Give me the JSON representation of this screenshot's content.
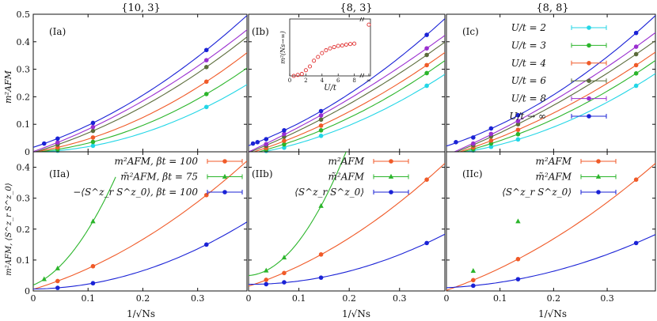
{
  "figure": {
    "column_titles": [
      "{10, 3}",
      "{8, 3}",
      "{8, 8}"
    ],
    "xlabel": "1/√Ns",
    "xticks": [
      "0",
      "0.1",
      "0.2",
      "0.3"
    ],
    "top_ylabel": "m²AFM",
    "top_yticks": [
      "0",
      "0.1",
      "0.2",
      "0.3",
      "0.4",
      "0.5"
    ],
    "bottom_ylabel": "m²AFM, ⟨S^z_r S^z_0⟩",
    "bottom_yticks": [
      "0",
      "0.1",
      "0.2",
      "0.3",
      "0.4"
    ]
  },
  "colors": {
    "U/t = 2": "#22d6e6",
    "U/t = 3": "#2bb52b",
    "U/t = 4": "#f05a28",
    "U/t = 6": "#5a6b3a",
    "U/t = 8": "#9a2fd0",
    "U/t → ∞": "#1a22d6",
    "m2": "#f05a28",
    "m2tilde": "#2bb52b",
    "corr": "#1a22d6",
    "inset": "#e03030"
  },
  "chart_data": [
    {
      "id": "Ia",
      "type": "scatter",
      "panel_label": "(Ia)",
      "xlim": [
        0,
        0.39
      ],
      "ylim": [
        0,
        0.5
      ],
      "series": [
        {
          "name": "U/t = 2",
          "x": [
            0.0445,
            0.109,
            0.316
          ],
          "y": [
            0.004,
            0.022,
            0.163
          ]
        },
        {
          "name": "U/t = 3",
          "x": [
            0.0445,
            0.109,
            0.316
          ],
          "y": [
            0.009,
            0.036,
            0.21
          ]
        },
        {
          "name": "U/t = 4",
          "x": [
            0.0445,
            0.109,
            0.316
          ],
          "y": [
            0.016,
            0.052,
            0.255
          ]
        },
        {
          "name": "U/t = 6",
          "x": [
            0.0445,
            0.109,
            0.316
          ],
          "y": [
            0.026,
            0.076,
            0.308
          ]
        },
        {
          "name": "U/t = 8",
          "x": [
            0.0445,
            0.109,
            0.316
          ],
          "y": [
            0.034,
            0.09,
            0.333
          ]
        },
        {
          "name": "U/t → ∞",
          "x": [
            0.0199,
            0.0445,
            0.109,
            0.316
          ],
          "y": [
            0.03,
            0.048,
            0.105,
            0.37
          ]
        }
      ]
    },
    {
      "id": "Ib",
      "type": "scatter",
      "panel_label": "(Ib)",
      "xlim": [
        0,
        0.39
      ],
      "ylim": [
        0,
        0.5
      ],
      "series": [
        {
          "name": "U/t = 2",
          "x": [
            0.035,
            0.0707,
            0.144,
            0.354
          ],
          "y": [
            0.003,
            0.015,
            0.058,
            0.24
          ]
        },
        {
          "name": "U/t = 3",
          "x": [
            0.035,
            0.0707,
            0.144,
            0.354
          ],
          "y": [
            0.008,
            0.027,
            0.078,
            0.286
          ]
        },
        {
          "name": "U/t = 4",
          "x": [
            0.035,
            0.0707,
            0.144,
            0.354
          ],
          "y": [
            0.014,
            0.04,
            0.095,
            0.315
          ]
        },
        {
          "name": "U/t = 6",
          "x": [
            0.035,
            0.0707,
            0.144,
            0.354
          ],
          "y": [
            0.022,
            0.055,
            0.117,
            0.352
          ]
        },
        {
          "name": "U/t = 8",
          "x": [
            0.035,
            0.0707,
            0.144,
            0.354
          ],
          "y": [
            0.028,
            0.065,
            0.132,
            0.376
          ]
        },
        {
          "name": "U/t → ∞",
          "x": [
            0.0088,
            0.0177,
            0.035,
            0.0707,
            0.144,
            0.354
          ],
          "y": [
            0.03,
            0.035,
            0.046,
            0.078,
            0.148,
            0.425
          ]
        }
      ],
      "inset": {
        "xlabel": "U/t",
        "ylabel": "m²(Ns→∞)",
        "xticks": [
          "0",
          "2",
          "4",
          "6",
          "8",
          "∞"
        ],
        "xlim": [
          0,
          10
        ],
        "ylim": [
          0,
          0.03
        ],
        "x": [
          0.5,
          1,
          1.5,
          2,
          2.5,
          3,
          3.5,
          4,
          4.5,
          5,
          5.5,
          6,
          6.5,
          7,
          7.5,
          8,
          9.8
        ],
        "y": [
          0.0,
          0.0005,
          0.001,
          0.003,
          0.005,
          0.008,
          0.01,
          0.012,
          0.0135,
          0.0145,
          0.0152,
          0.0158,
          0.016,
          0.0165,
          0.0168,
          0.017,
          0.027
        ]
      }
    },
    {
      "id": "Ic",
      "type": "scatter",
      "panel_label": "(Ic)",
      "xlim": [
        0,
        0.39
      ],
      "ylim": [
        0,
        0.5
      ],
      "legend": [
        "U/t = 2",
        "U/t = 3",
        "U/t = 4",
        "U/t = 6",
        "U/t = 8",
        "U/t → ∞"
      ],
      "series": [
        {
          "name": "U/t = 2",
          "x": [
            0.05,
            0.0833,
            0.1336,
            0.354
          ],
          "y": [
            0.005,
            0.018,
            0.045,
            0.24
          ]
        },
        {
          "name": "U/t = 3",
          "x": [
            0.05,
            0.0833,
            0.1336,
            0.354
          ],
          "y": [
            0.01,
            0.03,
            0.064,
            0.285
          ]
        },
        {
          "name": "U/t = 4",
          "x": [
            0.05,
            0.0833,
            0.1336,
            0.354
          ],
          "y": [
            0.016,
            0.041,
            0.08,
            0.315
          ]
        },
        {
          "name": "U/t = 6",
          "x": [
            0.05,
            0.0833,
            0.1336,
            0.354
          ],
          "y": [
            0.024,
            0.056,
            0.1,
            0.355
          ]
        },
        {
          "name": "U/t = 8",
          "x": [
            0.05,
            0.0833,
            0.1336,
            0.354
          ],
          "y": [
            0.03,
            0.065,
            0.112,
            0.382
          ]
        },
        {
          "name": "U/t → ∞",
          "x": [
            0.0177,
            0.05,
            0.0833,
            0.1336,
            0.354
          ],
          "y": [
            0.035,
            0.052,
            0.085,
            0.133,
            0.432
          ]
        }
      ]
    },
    {
      "id": "IIa",
      "type": "scatter",
      "panel_label": "(IIa)",
      "xlim": [
        0,
        0.39
      ],
      "ylim": [
        0,
        0.45
      ],
      "legend": [
        "m²AFM, βt = 100",
        "m̃²AFM, βt = 75",
        "−⟨S^z_r S^z_0⟩, βt = 100"
      ],
      "series": [
        {
          "name": "m2",
          "x": [
            0.0445,
            0.109,
            0.316
          ],
          "y": [
            0.032,
            0.08,
            0.31
          ]
        },
        {
          "name": "m2tilde",
          "x": [
            0.0199,
            0.0445,
            0.109
          ],
          "y": [
            0.038,
            0.073,
            0.225
          ]
        },
        {
          "name": "corr",
          "x": [
            0.0445,
            0.109,
            0.316
          ],
          "y": [
            0.01,
            0.025,
            0.15
          ]
        }
      ]
    },
    {
      "id": "IIb",
      "type": "scatter",
      "panel_label": "(IIb)",
      "xlim": [
        0,
        0.39
      ],
      "ylim": [
        0,
        0.45
      ],
      "legend": [
        "m²AFM",
        "m̃²AFM",
        "⟨S^z_r S^z_0⟩"
      ],
      "series": [
        {
          "name": "m2",
          "x": [
            0.035,
            0.0707,
            0.144,
            0.354
          ],
          "y": [
            0.036,
            0.058,
            0.118,
            0.36
          ]
        },
        {
          "name": "m2tilde",
          "x": [
            0.035,
            0.0707,
            0.144
          ],
          "y": [
            0.066,
            0.108,
            0.275
          ]
        },
        {
          "name": "corr",
          "x": [
            0.035,
            0.0707,
            0.144,
            0.354
          ],
          "y": [
            0.022,
            0.028,
            0.043,
            0.155
          ]
        }
      ]
    },
    {
      "id": "IIc",
      "type": "scatter",
      "panel_label": "(IIc)",
      "xlim": [
        0,
        0.39
      ],
      "ylim": [
        0,
        0.45
      ],
      "legend": [
        "m²AFM",
        "m̃²AFM",
        "⟨S^z_r S^z_0⟩"
      ],
      "series": [
        {
          "name": "m2",
          "x": [
            0.05,
            0.1336,
            0.354
          ],
          "y": [
            0.035,
            0.103,
            0.36
          ]
        },
        {
          "name": "m2tilde",
          "x": [
            0.05,
            0.1336
          ],
          "y": [
            0.065,
            0.225
          ]
        },
        {
          "name": "corr",
          "x": [
            0.05,
            0.1336,
            0.354
          ],
          "y": [
            0.017,
            0.038,
            0.155
          ]
        }
      ]
    }
  ]
}
